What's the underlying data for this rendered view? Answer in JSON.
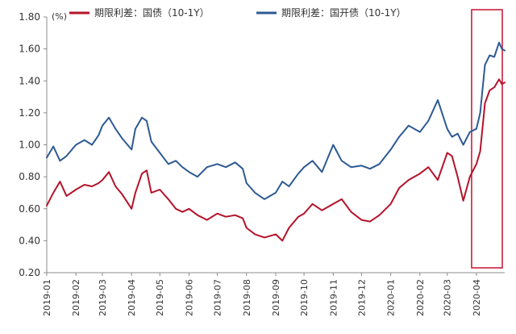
{
  "chart_data": {
    "type": "line",
    "title": "",
    "unit_label": "(%)",
    "xlabel": "",
    "ylabel": "",
    "ylim": [
      0.2,
      1.8
    ],
    "yticks": [
      "1.80",
      "1.60",
      "1.40",
      "1.20",
      "1.00",
      "0.80",
      "0.60",
      "0.40",
      "0.20"
    ],
    "xlim": [
      "2019-01",
      "2020-05"
    ],
    "xticks": [
      "2019-01",
      "2019-02",
      "2019-03",
      "2019-04",
      "2019-05",
      "2019-06",
      "2019-07",
      "2019-08",
      "2019-09",
      "2019-10",
      "2019-11",
      "2019-12",
      "2020-01",
      "2020-02",
      "2020-03",
      "2020-04"
    ],
    "grid": false,
    "legend_position": "top",
    "highlight": {
      "x_from": "2020-04",
      "x_to": "2020-05",
      "color": "#c8102e"
    },
    "series": [
      {
        "name": "期限利差：国债（10-1Y）",
        "color": "#b3132b",
        "points": [
          [
            "2019-01",
            0.62
          ],
          [
            "2019-01-08",
            0.7
          ],
          [
            "2019-01-15",
            0.77
          ],
          [
            "2019-01-22",
            0.68
          ],
          [
            "2019-02",
            0.72
          ],
          [
            "2019-02-10",
            0.75
          ],
          [
            "2019-02-18",
            0.74
          ],
          [
            "2019-02-25",
            0.76
          ],
          [
            "2019-03",
            0.78
          ],
          [
            "2019-03-08",
            0.83
          ],
          [
            "2019-03-15",
            0.74
          ],
          [
            "2019-03-22",
            0.69
          ],
          [
            "2019-04",
            0.6
          ],
          [
            "2019-04-05",
            0.7
          ],
          [
            "2019-04-12",
            0.82
          ],
          [
            "2019-04-17",
            0.84
          ],
          [
            "2019-04-22",
            0.7
          ],
          [
            "2019-05",
            0.72
          ],
          [
            "2019-05-10",
            0.66
          ],
          [
            "2019-05-18",
            0.6
          ],
          [
            "2019-05-25",
            0.58
          ],
          [
            "2019-06",
            0.6
          ],
          [
            "2019-06-10",
            0.56
          ],
          [
            "2019-06-20",
            0.53
          ],
          [
            "2019-07",
            0.57
          ],
          [
            "2019-07-10",
            0.55
          ],
          [
            "2019-07-20",
            0.56
          ],
          [
            "2019-07-28",
            0.54
          ],
          [
            "2019-08",
            0.48
          ],
          [
            "2019-08-10",
            0.44
          ],
          [
            "2019-08-20",
            0.42
          ],
          [
            "2019-09",
            0.44
          ],
          [
            "2019-09-08",
            0.4
          ],
          [
            "2019-09-15",
            0.48
          ],
          [
            "2019-09-25",
            0.55
          ],
          [
            "2019-10",
            0.57
          ],
          [
            "2019-10-10",
            0.63
          ],
          [
            "2019-10-20",
            0.59
          ],
          [
            "2019-11",
            0.63
          ],
          [
            "2019-11-10",
            0.66
          ],
          [
            "2019-11-20",
            0.58
          ],
          [
            "2019-12",
            0.53
          ],
          [
            "2019-12-10",
            0.52
          ],
          [
            "2019-12-20",
            0.56
          ],
          [
            "2020-01",
            0.63
          ],
          [
            "2020-01-10",
            0.73
          ],
          [
            "2020-01-20",
            0.78
          ],
          [
            "2020-02",
            0.82
          ],
          [
            "2020-02-10",
            0.86
          ],
          [
            "2020-02-20",
            0.78
          ],
          [
            "2020-03",
            0.95
          ],
          [
            "2020-03-06",
            0.93
          ],
          [
            "2020-03-12",
            0.8
          ],
          [
            "2020-03-18",
            0.65
          ],
          [
            "2020-03-25",
            0.8
          ],
          [
            "2020-04",
            0.88
          ],
          [
            "2020-04-05",
            0.96
          ],
          [
            "2020-04-10",
            1.26
          ],
          [
            "2020-04-15",
            1.34
          ],
          [
            "2020-04-20",
            1.36
          ],
          [
            "2020-04-25",
            1.41
          ],
          [
            "2020-04-28",
            1.38
          ],
          [
            "2020-05",
            1.39
          ]
        ]
      },
      {
        "name": "期限利差：国开债（10-1Y）",
        "color": "#2e5a93",
        "points": [
          [
            "2019-01",
            0.92
          ],
          [
            "2019-01-08",
            0.99
          ],
          [
            "2019-01-15",
            0.9
          ],
          [
            "2019-01-22",
            0.93
          ],
          [
            "2019-02",
            1.0
          ],
          [
            "2019-02-10",
            1.03
          ],
          [
            "2019-02-18",
            1.0
          ],
          [
            "2019-02-25",
            1.06
          ],
          [
            "2019-03",
            1.12
          ],
          [
            "2019-03-08",
            1.17
          ],
          [
            "2019-03-15",
            1.1
          ],
          [
            "2019-03-22",
            1.04
          ],
          [
            "2019-04",
            0.97
          ],
          [
            "2019-04-05",
            1.1
          ],
          [
            "2019-04-12",
            1.17
          ],
          [
            "2019-04-17",
            1.15
          ],
          [
            "2019-04-22",
            1.02
          ],
          [
            "2019-05",
            0.95
          ],
          [
            "2019-05-10",
            0.88
          ],
          [
            "2019-05-18",
            0.9
          ],
          [
            "2019-05-25",
            0.86
          ],
          [
            "2019-06",
            0.83
          ],
          [
            "2019-06-10",
            0.8
          ],
          [
            "2019-06-20",
            0.86
          ],
          [
            "2019-07",
            0.88
          ],
          [
            "2019-07-10",
            0.86
          ],
          [
            "2019-07-20",
            0.89
          ],
          [
            "2019-07-28",
            0.85
          ],
          [
            "2019-08",
            0.76
          ],
          [
            "2019-08-10",
            0.7
          ],
          [
            "2019-08-20",
            0.66
          ],
          [
            "2019-09",
            0.7
          ],
          [
            "2019-09-08",
            0.77
          ],
          [
            "2019-09-15",
            0.74
          ],
          [
            "2019-09-25",
            0.82
          ],
          [
            "2019-10",
            0.86
          ],
          [
            "2019-10-10",
            0.9
          ],
          [
            "2019-10-20",
            0.83
          ],
          [
            "2019-11",
            1.0
          ],
          [
            "2019-11-10",
            0.9
          ],
          [
            "2019-11-20",
            0.86
          ],
          [
            "2019-12",
            0.87
          ],
          [
            "2019-12-10",
            0.85
          ],
          [
            "2019-12-20",
            0.88
          ],
          [
            "2020-01",
            0.97
          ],
          [
            "2020-01-10",
            1.05
          ],
          [
            "2020-01-20",
            1.12
          ],
          [
            "2020-02",
            1.08
          ],
          [
            "2020-02-10",
            1.15
          ],
          [
            "2020-02-20",
            1.28
          ],
          [
            "2020-03",
            1.1
          ],
          [
            "2020-03-06",
            1.05
          ],
          [
            "2020-03-12",
            1.07
          ],
          [
            "2020-03-18",
            1.0
          ],
          [
            "2020-03-25",
            1.08
          ],
          [
            "2020-04",
            1.1
          ],
          [
            "2020-04-05",
            1.2
          ],
          [
            "2020-04-10",
            1.5
          ],
          [
            "2020-04-15",
            1.56
          ],
          [
            "2020-04-20",
            1.55
          ],
          [
            "2020-04-25",
            1.64
          ],
          [
            "2020-04-28",
            1.6
          ],
          [
            "2020-05",
            1.59
          ]
        ]
      }
    ]
  }
}
